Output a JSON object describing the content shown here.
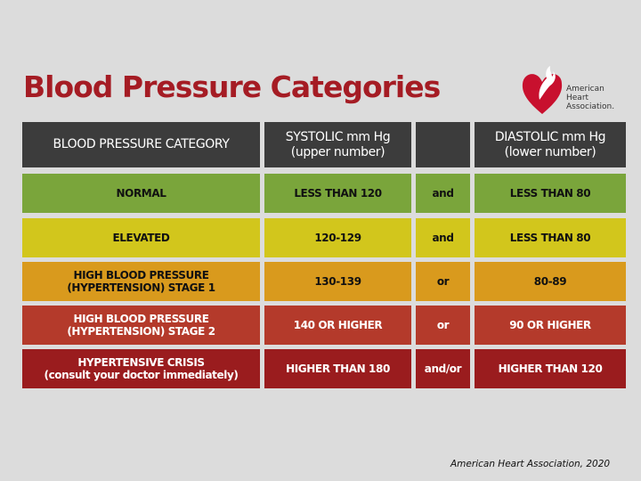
{
  "title": "Blood Pressure Categories",
  "logo": {
    "lines": [
      "American",
      "Heart",
      "Association."
    ]
  },
  "table": {
    "header": [
      [
        "BLOOD PRESSURE CATEGORY"
      ],
      [
        "SYSTOLIC mm Hg",
        "(upper number)"
      ],
      [],
      [
        "DIASTOLIC mm Hg",
        "(lower number)"
      ]
    ],
    "rows": [
      [
        [
          "NORMAL"
        ],
        [
          "LESS THAN 120"
        ],
        [
          "and"
        ],
        [
          "LESS THAN 80"
        ]
      ],
      [
        [
          "ELEVATED"
        ],
        [
          "120-129"
        ],
        [
          "and"
        ],
        [
          "LESS THAN 80"
        ]
      ],
      [
        [
          "HIGH BLOOD PRESSURE",
          "(HYPERTENSION) STAGE 1"
        ],
        [
          "130-139"
        ],
        [
          "or"
        ],
        [
          "80-89"
        ]
      ],
      [
        [
          "HIGH BLOOD PRESSURE",
          "(HYPERTENSION) STAGE 2"
        ],
        [
          "140 OR HIGHER"
        ],
        [
          "or"
        ],
        [
          "90 OR HIGHER"
        ]
      ],
      [
        [
          "HYPERTENSIVE CRISIS",
          "(consult your doctor immediately)"
        ],
        [
          "HIGHER THAN 180"
        ],
        [
          "and/or"
        ],
        [
          "HIGHER THAN 120"
        ]
      ]
    ]
  },
  "caption": "American Heart Association, 2020"
}
